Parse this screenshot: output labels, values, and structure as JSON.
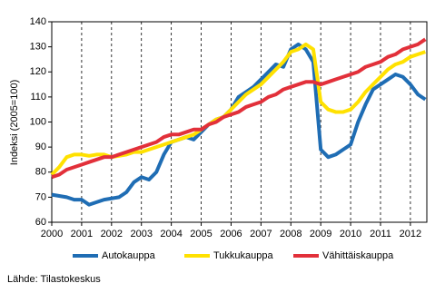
{
  "chart_data": {
    "type": "line",
    "y_label": "Indeksi (2005=100)",
    "source": "Lähde: Tilastokeskus",
    "x": [
      2000,
      2000.25,
      2000.5,
      2000.75,
      2001,
      2001.25,
      2001.5,
      2001.75,
      2002,
      2002.25,
      2002.5,
      2002.75,
      2003,
      2003.25,
      2003.5,
      2003.75,
      2004,
      2004.25,
      2004.5,
      2004.75,
      2005,
      2005.25,
      2005.5,
      2005.75,
      2006,
      2006.25,
      2006.5,
      2006.75,
      2007,
      2007.25,
      2007.5,
      2007.75,
      2008,
      2008.25,
      2008.5,
      2008.75,
      2009,
      2009.25,
      2009.5,
      2009.75,
      2010,
      2010.25,
      2010.5,
      2010.75,
      2011,
      2011.25,
      2011.5,
      2011.75,
      2012,
      2012.25,
      2012.5
    ],
    "series": [
      {
        "name": "Autokauppa",
        "color": "#1f6db4",
        "values": [
          71,
          70.5,
          70,
          69,
          69,
          67,
          68,
          69,
          69.5,
          70,
          72,
          76,
          78,
          77,
          80,
          87,
          92,
          93,
          94,
          93,
          96,
          99,
          101,
          102,
          105,
          110,
          112,
          114,
          117,
          120,
          123,
          122,
          129,
          131,
          129,
          124,
          89,
          86,
          87,
          89,
          91,
          100,
          107,
          113,
          115,
          117,
          119,
          118,
          115,
          111,
          109
        ]
      },
      {
        "name": "Tukkukauppa",
        "color": "#ffe100",
        "values": [
          79,
          82,
          86,
          87,
          87,
          86.5,
          87,
          87,
          86,
          86.5,
          87,
          88,
          88,
          89,
          90,
          91,
          92,
          93,
          94,
          95,
          97,
          99,
          101,
          102,
          105,
          108,
          111,
          113,
          115,
          118,
          121,
          124,
          128,
          129,
          131,
          129,
          108,
          105,
          104,
          104,
          105,
          108,
          112,
          115,
          118,
          121,
          123,
          124,
          126,
          127,
          128
        ]
      },
      {
        "name": "Vähittäiskauppa",
        "color": "#e2303a",
        "values": [
          78,
          79,
          81,
          82,
          83,
          84,
          85,
          86,
          86,
          87,
          88,
          89,
          90,
          91,
          92,
          94,
          95,
          95,
          96,
          97,
          97,
          99,
          100,
          102,
          103,
          104,
          106,
          107,
          108,
          110,
          111,
          113,
          114,
          115,
          116,
          116,
          115,
          116,
          117,
          118,
          119,
          120,
          122,
          123,
          124,
          126,
          127,
          129,
          130,
          131,
          133
        ]
      }
    ],
    "xlim": [
      2000,
      2012.55
    ],
    "xticks": [
      2000,
      2001,
      2002,
      2003,
      2004,
      2005,
      2006,
      2007,
      2008,
      2009,
      2010,
      2011,
      2012
    ],
    "ylim": [
      60,
      140
    ],
    "yticks": [
      60,
      70,
      80,
      90,
      100,
      110,
      120,
      130,
      140
    ],
    "grid": true
  }
}
